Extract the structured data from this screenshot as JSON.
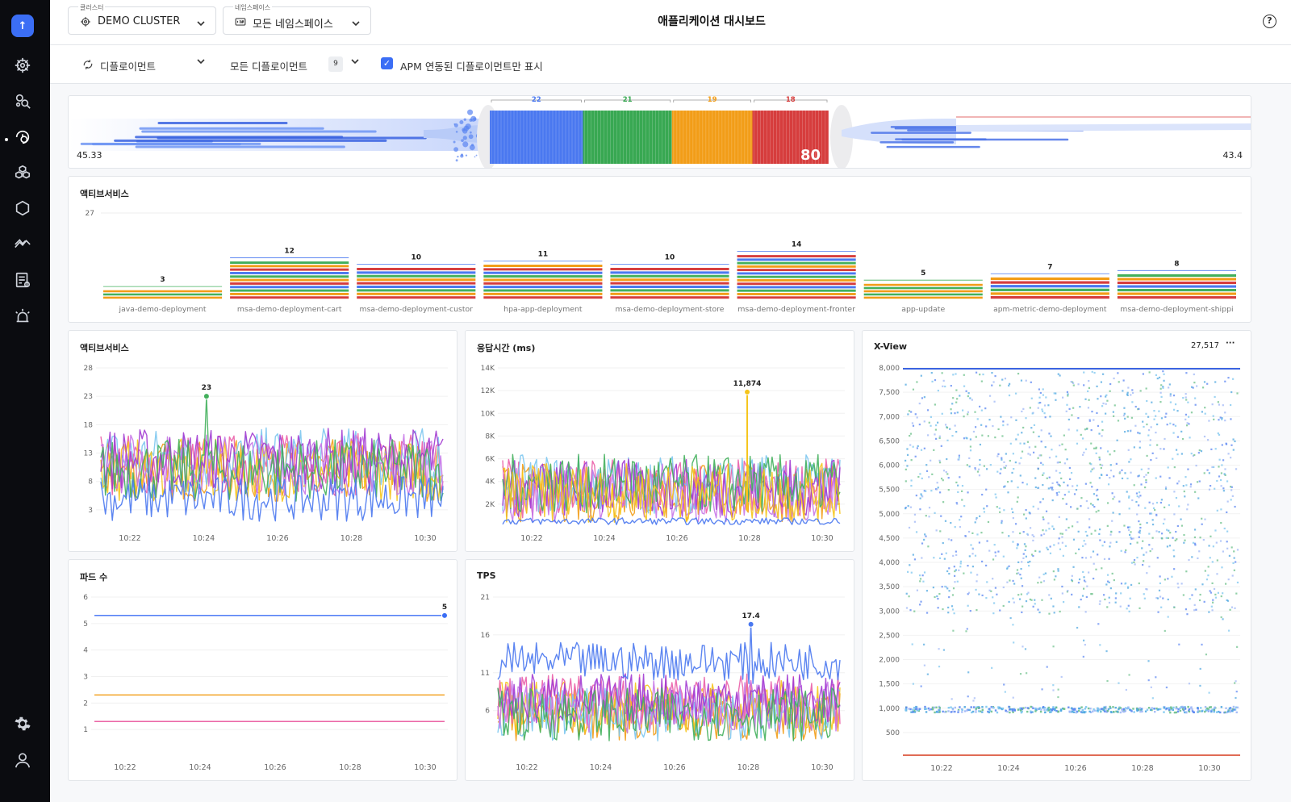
{
  "sidebar": {
    "logo_label": "↑",
    "icons": [
      "logo-icon",
      "helm-wheel-icon",
      "cluster-search-icon",
      "app-monitor-icon",
      "cubes-icon",
      "hexagon-icon",
      "trend-icon",
      "report-icon",
      "alert-beacon-icon",
      "gear-icon",
      "user-icon"
    ]
  },
  "header": {
    "cluster": {
      "label": "클러스터",
      "value": "DEMO CLUSTER"
    },
    "namespace": {
      "label": "네임스페이스",
      "value": "모든 네임스페이스"
    },
    "title": "애플리케이션 대시보드"
  },
  "filters": {
    "deployment_type": "디플로이먼트",
    "deployment_scope": "모든 디플로이먼트",
    "count_badge": "9",
    "apm_only_label": "APM 연동된 디플로이먼트만 표시",
    "apm_only_checked": true
  },
  "flow": {
    "left_value": "45.33",
    "right_value": "43.4",
    "groups": [
      {
        "count": "22",
        "color": "#4a78f0"
      },
      {
        "count": "21",
        "color": "#38a852"
      },
      {
        "count": "19",
        "color": "#f29d18"
      },
      {
        "count": "18",
        "color": "#d63d3d"
      }
    ],
    "total": "80"
  },
  "active_services_bar": {
    "title": "액티브서비스",
    "chart_data": {
      "type": "bar",
      "ylim": [
        0,
        27
      ],
      "y_tick": "27",
      "categories": [
        "java-demo-deployment",
        "msa-demo-deployment-cart",
        "msa-demo-deployment-custor",
        "hpa-app-deployment",
        "msa-demo-deployment-store",
        "msa-demo-deployment-fronter",
        "app-update",
        "apm-metric-demo-deployment",
        "msa-demo-deployment-shippi"
      ],
      "values": [
        3,
        12,
        10,
        11,
        10,
        14,
        5,
        7,
        8
      ],
      "labels": [
        "3",
        "12",
        "10",
        "11",
        "10",
        "14",
        "5",
        "7",
        "8"
      ]
    }
  },
  "active_services_line": {
    "title": "액티브서비스",
    "peak_label": "23",
    "chart_data": {
      "type": "line",
      "yticks": [
        "28",
        "23",
        "18",
        "13",
        "8",
        "3"
      ],
      "ylim": [
        0,
        28
      ],
      "xticks": [
        "10:22",
        "10:24",
        "10:26",
        "10:28",
        "10:30"
      ],
      "peak": {
        "x": "10:24",
        "y": 23
      }
    }
  },
  "response_time": {
    "title": "응답시간 (ms)",
    "peak_label": "11,874",
    "chart_data": {
      "type": "line",
      "yticks": [
        "14K",
        "12K",
        "10K",
        "8K",
        "6K",
        "4K",
        "2K"
      ],
      "ylim": [
        0,
        14000
      ],
      "xticks": [
        "10:22",
        "10:24",
        "10:26",
        "10:28",
        "10:30"
      ],
      "peak": {
        "x": "10:28",
        "y": 11874
      }
    }
  },
  "xview": {
    "title": "X-View",
    "count": "27,517",
    "menu": "···",
    "chart_data": {
      "type": "scatter",
      "yticks": [
        "8,000",
        "7,500",
        "7,000",
        "6,500",
        "6,000",
        "5,500",
        "5,000",
        "4,500",
        "4,000",
        "3,500",
        "3,000",
        "2,500",
        "2,000",
        "1,500",
        "1,000",
        "500"
      ],
      "ylim": [
        0,
        8000
      ],
      "xticks": [
        "10:22",
        "10:24",
        "10:26",
        "10:28",
        "10:30"
      ]
    }
  },
  "pods": {
    "title": "파드 수",
    "peak_label": "5",
    "chart_data": {
      "type": "line",
      "yticks": [
        "6",
        "5",
        "4",
        "3",
        "2",
        "1"
      ],
      "ylim": [
        0,
        6
      ],
      "xticks": [
        "10:22",
        "10:24",
        "10:26",
        "10:28",
        "10:30"
      ],
      "series": [
        {
          "values": [
            5,
            5
          ],
          "color": "#3b6ef5"
        },
        {
          "values": [
            2,
            2
          ],
          "color": "#f29d18"
        },
        {
          "values": [
            1,
            1
          ],
          "color": "#e8509a"
        }
      ]
    }
  },
  "tps": {
    "title": "TPS",
    "peak_label": "17.4",
    "chart_data": {
      "type": "line",
      "yticks": [
        "21",
        "16",
        "11",
        "6"
      ],
      "ylim": [
        0,
        21
      ],
      "xticks": [
        "10:22",
        "10:24",
        "10:26",
        "10:28",
        "10:30"
      ],
      "peak": {
        "x": "10:28",
        "y": 17.4
      }
    }
  },
  "colors": {
    "blue": "#4a78f0",
    "green": "#43b05c",
    "orange": "#f29d18",
    "red": "#d63d3d",
    "pink": "#ea5fa8",
    "purple": "#a23bd1",
    "yellow": "#f5c51c",
    "lightblue": "#7cc6ef",
    "violet": "#c877e8"
  }
}
